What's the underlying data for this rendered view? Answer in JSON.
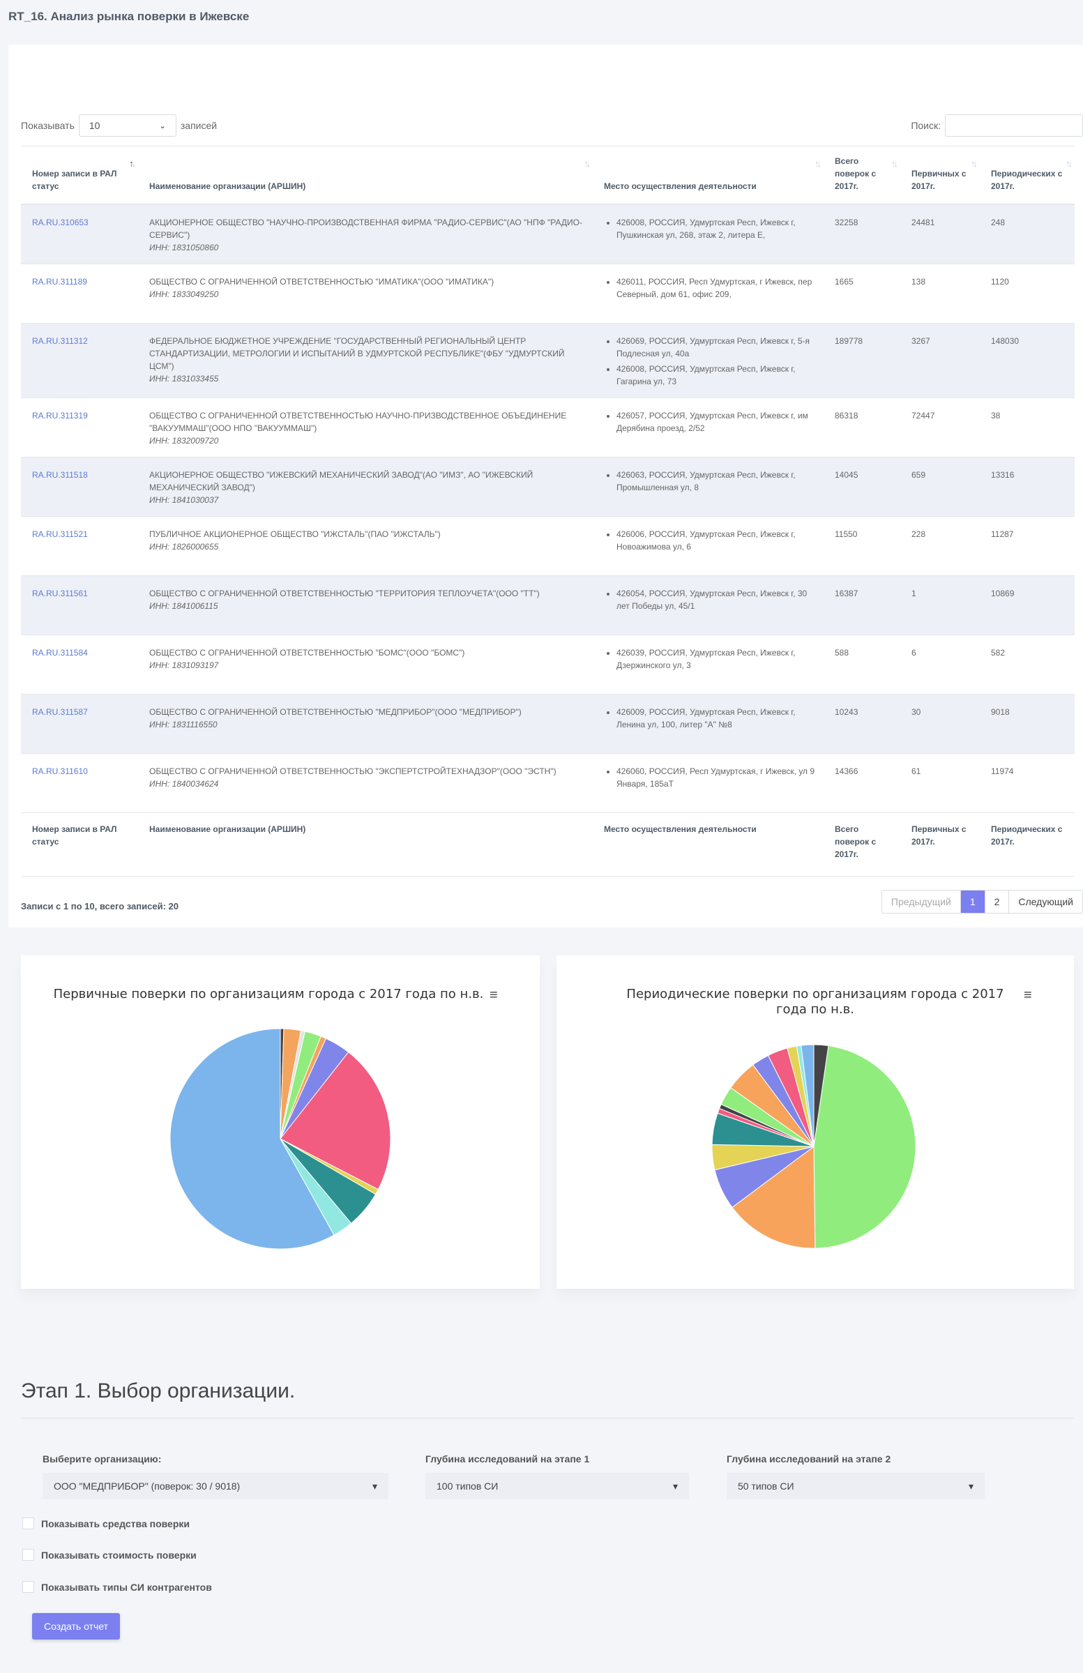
{
  "page_title": "RT_16. Анализ рынка поверки в Ижевске",
  "table_controls": {
    "show_label": "Показывать",
    "length_value": "10",
    "records_label": "записей",
    "search_label": "Поиск:"
  },
  "columns": [
    "Номер записи в РАЛ статус",
    "Наименование организации (АРШИН)",
    "Место осуществления деятельности",
    "Всего поверок с 2017г.",
    "Первичных с 2017г.",
    "Периодических с 2017г."
  ],
  "rows": [
    {
      "id": "RA.RU.310653",
      "name": "АКЦИОНЕРНОЕ ОБЩЕСТВО \"НАУЧНО-ПРОИЗВОДСТВЕННАЯ ФИРМА \"РАДИО-СЕРВИС\"(АО \"НПФ \"РАДИО-СЕРВИС\")",
      "inn": "ИНН: 1831050860",
      "addresses": [
        "426008, РОССИЯ, Удмуртская Респ, Ижевск г, Пушкинская ул, 268, этаж 2, литера Е,"
      ],
      "total": "32258",
      "primary": "24481",
      "periodic": "248"
    },
    {
      "id": "RA.RU.311189",
      "name": "ОБЩЕСТВО С ОГРАНИЧЕННОЙ ОТВЕТСТВЕННОСТЬЮ \"ИМАТИКА\"(ООО \"ИМАТИКА\")",
      "inn": "ИНН: 1833049250",
      "addresses": [
        "426011, РОССИЯ, Респ Удмуртская, г Ижевск, пер Северный, дом 61, офис 209,"
      ],
      "total": "1665",
      "primary": "138",
      "periodic": "1120"
    },
    {
      "id": "RA.RU.311312",
      "name": "ФЕДЕРАЛЬНОЕ БЮДЖЕТНОЕ УЧРЕЖДЕНИЕ \"ГОСУДАРСТВЕННЫЙ РЕГИОНАЛЬНЫЙ ЦЕНТР СТАНДАРТИЗАЦИИ, МЕТРОЛОГИИ И ИСПЫТАНИЙ В УДМУРТСКОЙ РЕСПУБЛИКЕ\"(ФБУ \"УДМУРТСКИЙ ЦСМ\")",
      "inn": "ИНН: 1831033455",
      "addresses": [
        "426069, РОССИЯ, Удмуртская Респ, Ижевск г, 5-я Подлесная ул, 40а",
        "426008, РОССИЯ, Удмуртская Респ, Ижевск г, Гагарина ул, 73"
      ],
      "total": "189778",
      "primary": "3267",
      "periodic": "148030"
    },
    {
      "id": "RA.RU.311319",
      "name": "ОБЩЕСТВО С ОГРАНИЧЕННОЙ ОТВЕТСТВЕННОСТЬЮ НАУЧНО-ПРИЗВОДСТВЕННОЕ ОБЪЕДИНЕНИЕ \"ВАКУУММАШ\"(ООО НПО \"ВАКУУММАШ\")",
      "inn": "ИНН: 1832009720",
      "addresses": [
        "426057, РОССИЯ, Удмуртская Респ, Ижевск г, им Дерябина проезд, 2/52"
      ],
      "total": "86318",
      "primary": "72447",
      "periodic": "38"
    },
    {
      "id": "RA.RU.311518",
      "name": "АКЦИОНЕРНОЕ ОБЩЕСТВО \"ИЖЕВСКИЙ МЕХАНИЧЕСКИЙ ЗАВОД\"(АО \"ИМЗ\", АО \"ИЖЕВСКИЙ МЕХАНИЧЕСКИЙ ЗАВОД\")",
      "inn": "ИНН: 1841030037",
      "addresses": [
        "426063, РОССИЯ, Удмуртская Респ, Ижевск г, Промышленная ул, 8"
      ],
      "total": "14045",
      "primary": "659",
      "periodic": "13316"
    },
    {
      "id": "RA.RU.311521",
      "name": "ПУБЛИЧНОЕ АКЦИОНЕРНОЕ ОБЩЕСТВО \"ИЖСТАЛЬ\"(ПАО \"ИЖСТАЛЬ\")",
      "inn": "ИНН: 1826000655",
      "addresses": [
        "426006, РОССИЯ, Удмуртская Респ, Ижевск г, Новоажимова ул, 6"
      ],
      "total": "11550",
      "primary": "228",
      "periodic": "11287"
    },
    {
      "id": "RA.RU.311561",
      "name": "ОБЩЕСТВО С ОГРАНИЧЕННОЙ ОТВЕТСТВЕННОСТЬЮ \"ТЕРРИТОРИЯ ТЕПЛОУЧЕТА\"(ООО \"ТТ\")",
      "inn": "ИНН: 1841006115",
      "addresses": [
        "426054, РОССИЯ, Удмуртская Респ, Ижевск г, 30 лет Победы ул, 45/1"
      ],
      "total": "16387",
      "primary": "1",
      "periodic": "10869"
    },
    {
      "id": "RA.RU.311584",
      "name": "ОБЩЕСТВО С ОГРАНИЧЕННОЙ ОТВЕТСТВЕННОСТЬЮ \"БОМС\"(ООО \"БОМС\")",
      "inn": "ИНН: 1831093197",
      "addresses": [
        "426039, РОССИЯ, Удмуртская Респ, Ижевск г, Дзержинского ул, 3"
      ],
      "total": "588",
      "primary": "6",
      "periodic": "582"
    },
    {
      "id": "RA.RU.311587",
      "name": "ОБЩЕСТВО С ОГРАНИЧЕННОЙ ОТВЕТСТВЕННОСТЬЮ \"МЕДПРИБОР\"(ООО \"МЕДПРИБОР\")",
      "inn": "ИНН: 1831116550",
      "addresses": [
        "426009, РОССИЯ, Удмуртская Респ, Ижевск г, Ленина ул, 100, литер \"А\" №8"
      ],
      "total": "10243",
      "primary": "30",
      "periodic": "9018"
    },
    {
      "id": "RA.RU.311610",
      "name": "ОБЩЕСТВО С ОГРАНИЧЕННОЙ ОТВЕТСТВЕННОСТЬЮ \"ЭКСПЕРТСТРОЙТЕХНАДЗОР\"(ООО \"ЭСТН\")",
      "inn": "ИНН: 1840034624",
      "addresses": [
        "426060, РОССИЯ, Респ Удмуртская, г Ижевск, ул 9 Января, 185аТ"
      ],
      "total": "14366",
      "primary": "61",
      "periodic": "11974"
    }
  ],
  "table_info": "Записи с 1 по 10, всего записей: 20",
  "pager": {
    "prev": "Предыдущий",
    "pages": [
      "1",
      "2"
    ],
    "next": "Следующий"
  },
  "charts": [
    {
      "title": "Первичные поверки по организациям города с 2017 года по н.в."
    },
    {
      "title": "Периодические поверки по организациям города с 2017 года по н.в."
    }
  ],
  "chart_data": [
    {
      "type": "pie",
      "title": "Первичные поверки по организациям города с 2017 года по н.в.",
      "slices": [
        {
          "value": 0.5,
          "color": "#444444"
        },
        {
          "value": 2.5,
          "color": "#f4a45c"
        },
        {
          "value": 0.6,
          "color": "#e4e4e4"
        },
        {
          "value": 2.4,
          "color": "#90ed7d"
        },
        {
          "value": 0.8,
          "color": "#f7a35c"
        },
        {
          "value": 3.8,
          "color": "#8085e9"
        },
        {
          "value": 22.0,
          "color": "#f15c80"
        },
        {
          "value": 0.8,
          "color": "#e4d354"
        },
        {
          "value": 5.5,
          "color": "#2b908f"
        },
        {
          "value": 3.0,
          "color": "#91e8e1"
        },
        {
          "value": 58.1,
          "color": "#7cb5ec"
        }
      ]
    },
    {
      "type": "pie",
      "title": "Периодические поверки по организациям города с 2017 года по н.в.",
      "slices": [
        {
          "value": 2.3,
          "color": "#434348"
        },
        {
          "value": 47.5,
          "color": "#90ed7d"
        },
        {
          "value": 15.0,
          "color": "#f7a35c"
        },
        {
          "value": 6.5,
          "color": "#8085e9"
        },
        {
          "value": 4.0,
          "color": "#e4d354"
        },
        {
          "value": 5.0,
          "color": "#2b908f"
        },
        {
          "value": 0.8,
          "color": "#f15c80"
        },
        {
          "value": 0.7,
          "color": "#434348"
        },
        {
          "value": 3.0,
          "color": "#90ed7d"
        },
        {
          "value": 5.0,
          "color": "#f7a35c"
        },
        {
          "value": 2.8,
          "color": "#8085e9"
        },
        {
          "value": 3.2,
          "color": "#f15c80"
        },
        {
          "value": 1.5,
          "color": "#e4d354"
        },
        {
          "value": 0.7,
          "color": "#91e8e1"
        },
        {
          "value": 2.0,
          "color": "#7cb5ec"
        }
      ]
    }
  ],
  "step": {
    "title": "Этап 1. Выбор организации.",
    "org_label": "Выберите организацию:",
    "org_value": "ООО \"МЕДПРИБОР\" (поверок: 30 / 9018)",
    "depth1_label": "Глубина исследований на этапе 1",
    "depth1_value": "100 типов СИ",
    "depth2_label": "Глубина исследований на этапе 2",
    "depth2_value": "50 типов СИ",
    "checkboxes": [
      "Показывать средства поверки",
      "Показывать стоимость поверки",
      "Показывать типы СИ контрагентов"
    ],
    "button": "Создать отчет"
  },
  "colors": {
    "accent": "#7b7ff0",
    "link": "#5b7bd5",
    "odd_row": "#eef0f7"
  }
}
